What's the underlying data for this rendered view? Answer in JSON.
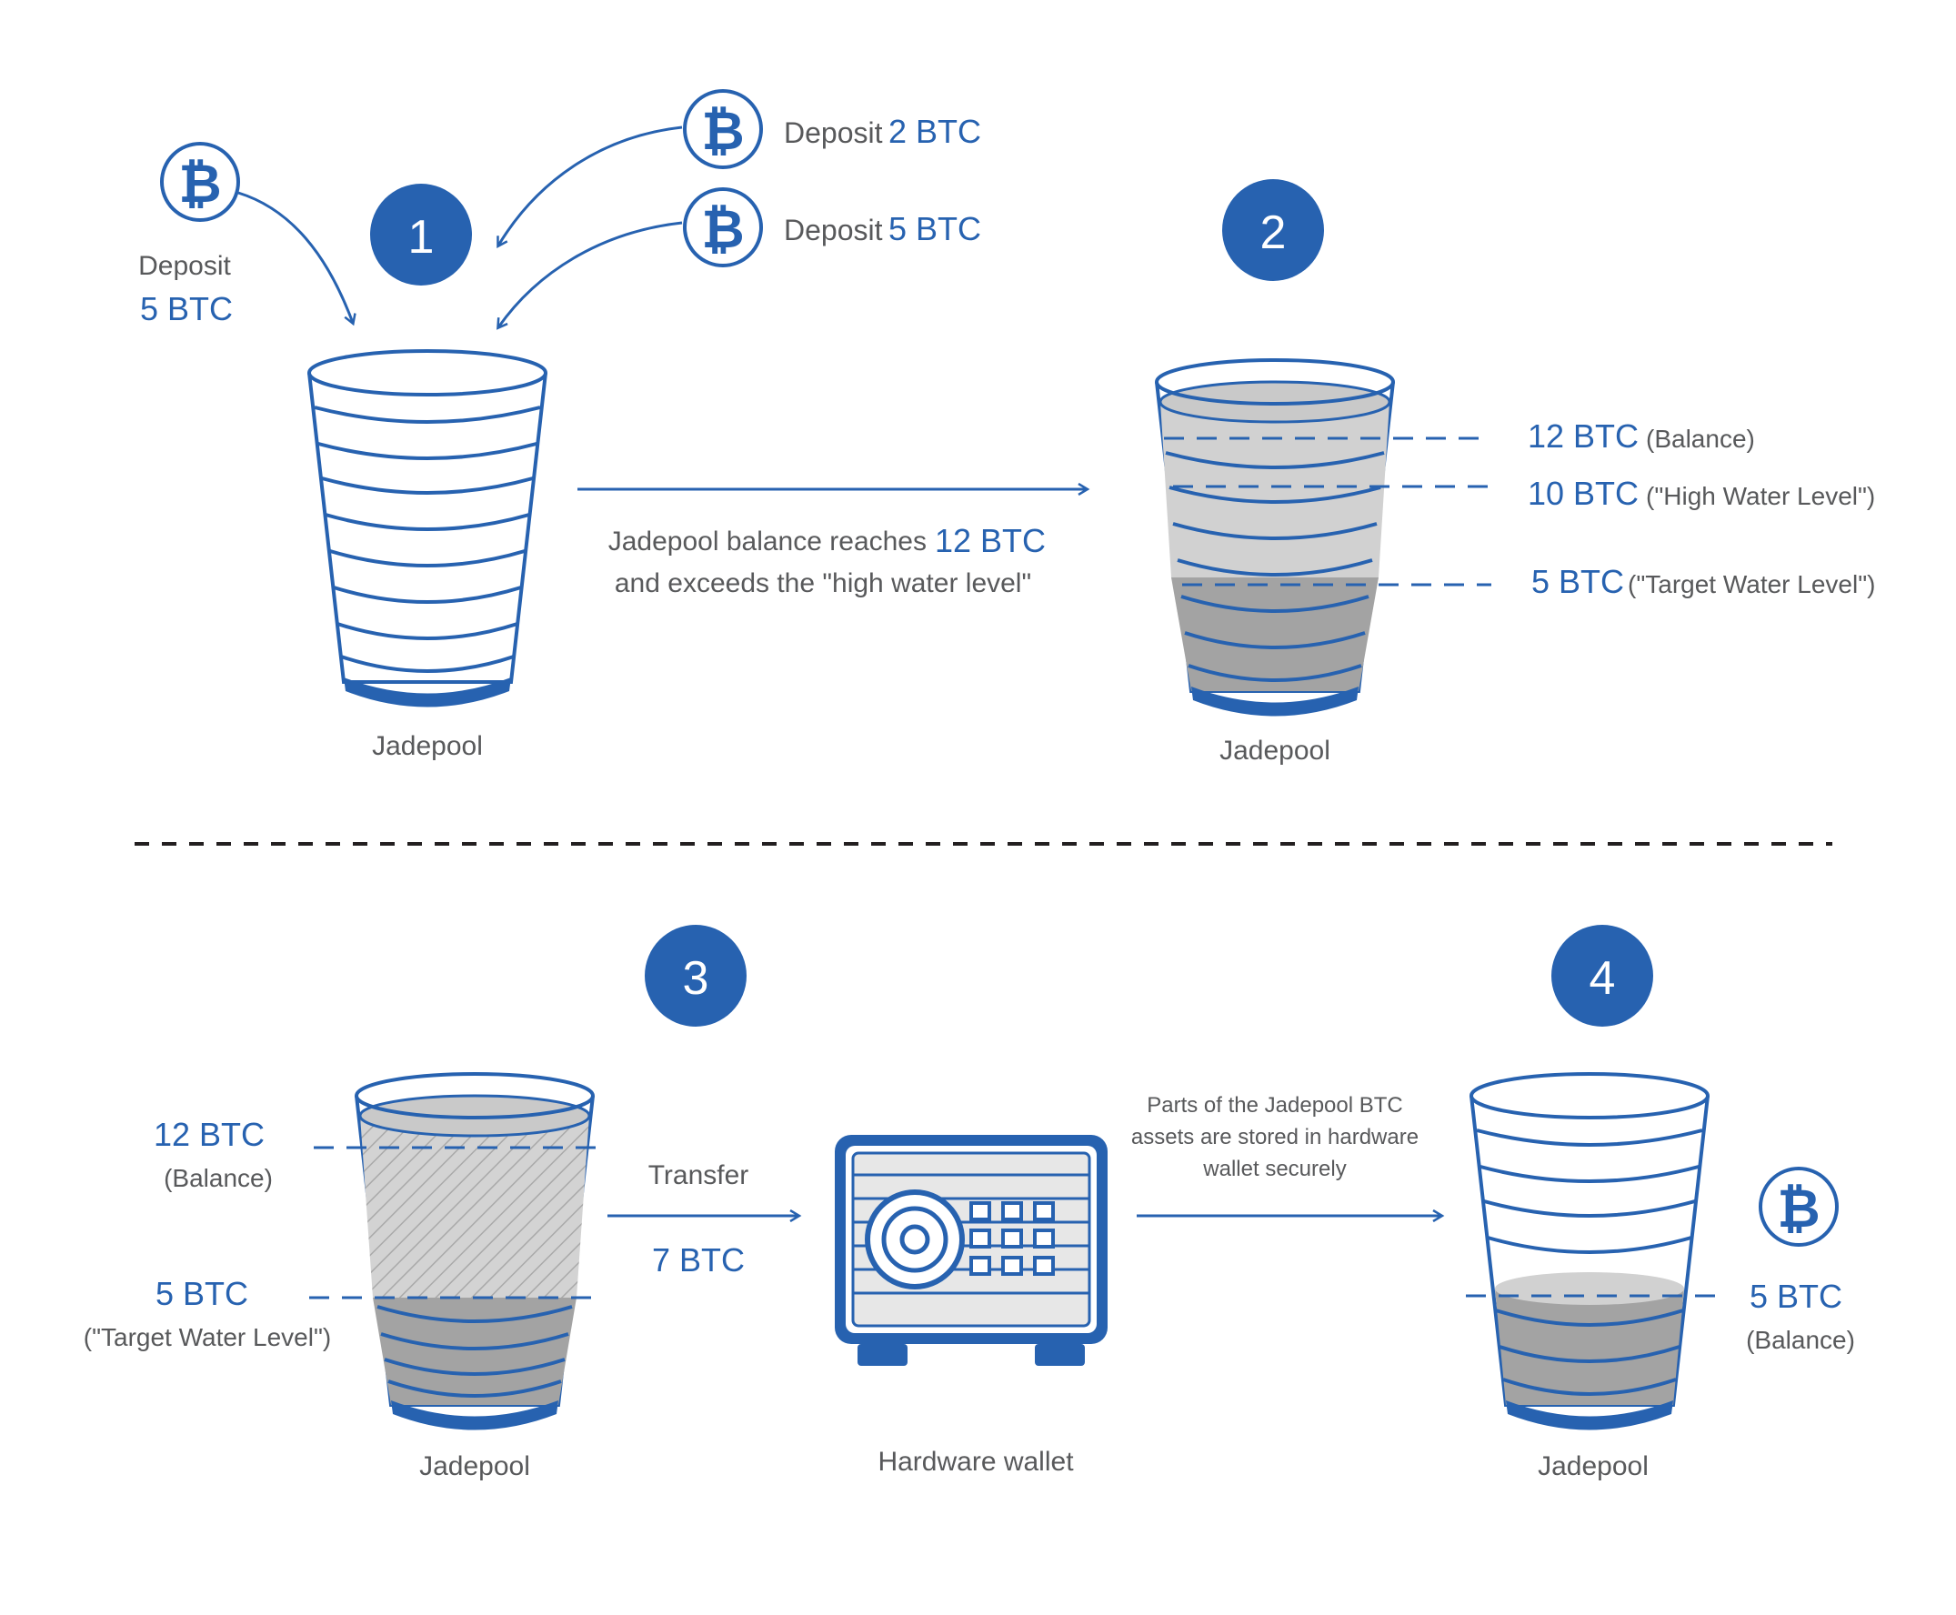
{
  "colors": {
    "accent": "#2762b0",
    "text": "#58595b",
    "fill_light": "#cfcfcf",
    "fill_dark": "#a3a3a3"
  },
  "icons": [
    "bitcoin-icon",
    "arrow-icon",
    "safe-icon"
  ],
  "steps": {
    "s1": "1",
    "s2": "2",
    "s3": "3",
    "s4": "4"
  },
  "step1": {
    "deposit_a_word": "Deposit",
    "deposit_a_amount": "5 BTC",
    "deposit_b_word": "Deposit",
    "deposit_b_amount": "2 BTC",
    "deposit_c_word": "Deposit",
    "deposit_c_amount": "5 BTC",
    "pool_label": "Jadepool"
  },
  "transition_1_2": {
    "line1_text": "Jadepool balance reaches",
    "line1_amount": "12 BTC",
    "line2_text": "and exceeds the \"high water level\""
  },
  "step2": {
    "balance_amount": "12 BTC",
    "balance_note": "(Balance)",
    "high_amount": "10 BTC",
    "high_note": "(\"High Water Level\")",
    "target_amount": "5 BTC",
    "target_note": "(\"Target Water Level\")",
    "pool_label": "Jadepool"
  },
  "step3": {
    "balance_amount": "12 BTC",
    "balance_note": "(Balance)",
    "target_amount": "5 BTC",
    "target_note": "(\"Target Water Level\")",
    "pool_label": "Jadepool",
    "transfer_label": "Transfer",
    "transfer_amount": "7 BTC",
    "wallet_label": "Hardware wallet"
  },
  "transition_3_4": {
    "line1": "Parts of the Jadepool BTC",
    "line2": "assets are stored in hardware",
    "line3": "wallet securely"
  },
  "step4": {
    "balance_amount": "5 BTC",
    "balance_note": "(Balance)",
    "pool_label": "Jadepool"
  }
}
